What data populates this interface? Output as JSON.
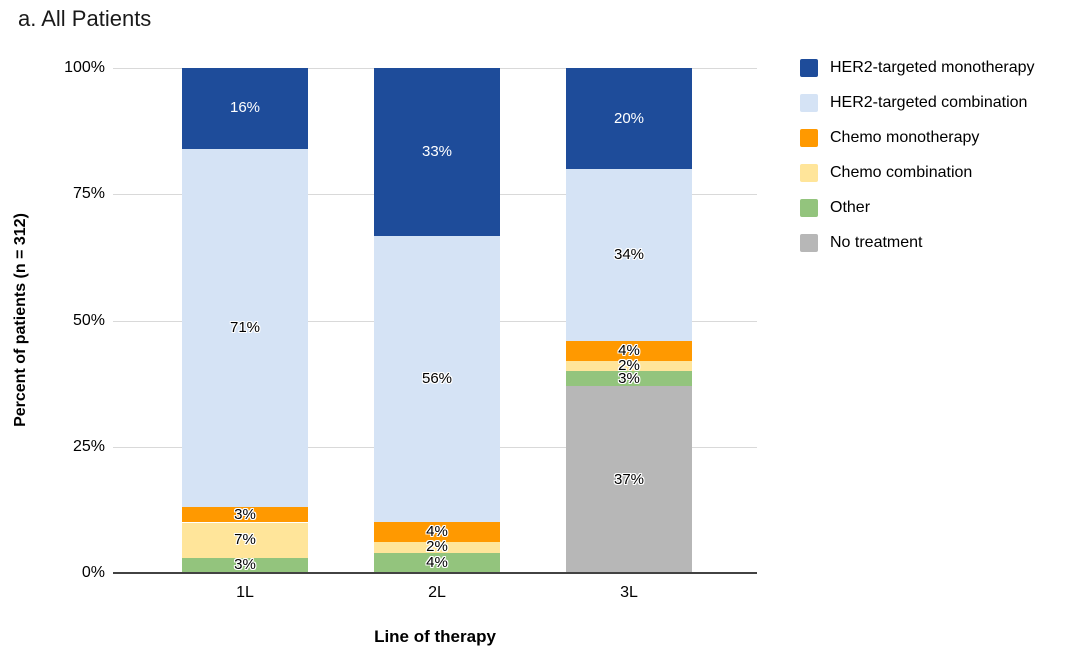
{
  "chart_data": {
    "type": "bar",
    "stacked": true,
    "title": "a. All Patients",
    "xlabel": "Line of therapy",
    "ylabel": "Percent of patients (n = 312)",
    "categories": [
      "1L",
      "2L",
      "3L"
    ],
    "series": [
      {
        "name": "HER2-targeted monotherapy",
        "color": "#1e4c9a",
        "label_color": "#ffffff",
        "values": [
          16,
          33,
          20
        ]
      },
      {
        "name": "HER2-targeted combination",
        "color": "#d5e3f5",
        "label_color": "#000000",
        "values": [
          71,
          56,
          34
        ]
      },
      {
        "name": "Chemo monotherapy",
        "color": "#ff9900",
        "label_color": "#000000",
        "values": [
          3,
          4,
          4
        ]
      },
      {
        "name": "Chemo combination",
        "color": "#ffe59a",
        "label_color": "#000000",
        "values": [
          7,
          2,
          2
        ]
      },
      {
        "name": "Other",
        "color": "#93c47d",
        "label_color": "#000000",
        "values": [
          3,
          4,
          3
        ]
      },
      {
        "name": "No treatment",
        "color": "#b7b7b7",
        "label_color": "#000000",
        "values": [
          0,
          0,
          37
        ]
      }
    ],
    "value_suffix": "%",
    "yticks": [
      "0%",
      "25%",
      "50%",
      "75%",
      "100%"
    ],
    "ytick_values": [
      0,
      25,
      50,
      75,
      100
    ],
    "ylim": [
      0,
      100
    ],
    "grid": true,
    "legend_position": "right",
    "stack_order_bottom_to_top": [
      "No treatment",
      "Other",
      "Chemo combination",
      "Chemo monotherapy",
      "HER2-targeted combination",
      "HER2-targeted monotherapy"
    ],
    "colors": {
      "gridline": "#d9d9d9",
      "axis_line": "#424242",
      "text": "#000000"
    }
  }
}
